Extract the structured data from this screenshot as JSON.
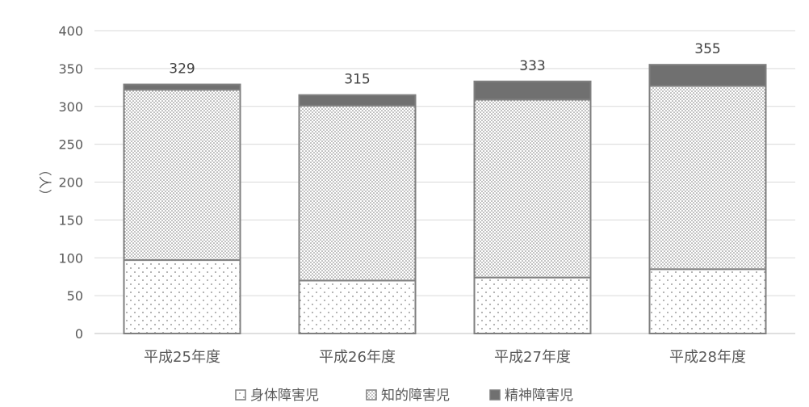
{
  "chart_data": {
    "type": "bar",
    "stacked": true,
    "categories": [
      "平成25年度",
      "平成26年度",
      "平成27年度",
      "平成28年度"
    ],
    "series": [
      {
        "name": "身体障害児",
        "values": [
          97,
          70,
          74,
          85
        ],
        "pattern": "sparse-dots",
        "color": "#ffffff"
      },
      {
        "name": "知的障害児",
        "values": [
          225,
          231,
          235,
          242
        ],
        "pattern": "dense-dots",
        "color": "#ffffff"
      },
      {
        "name": "精神障害児",
        "values": [
          7,
          14,
          24,
          28
        ],
        "pattern": "solid",
        "color": "#707070"
      }
    ],
    "totals": [
      329,
      315,
      333,
      355
    ],
    "ylabel": "（人）",
    "xlabel": "",
    "ylim": [
      0,
      400
    ],
    "yticks": [
      0,
      50,
      100,
      150,
      200,
      250,
      300,
      350,
      400
    ],
    "grid": true,
    "legend_position": "bottom"
  }
}
